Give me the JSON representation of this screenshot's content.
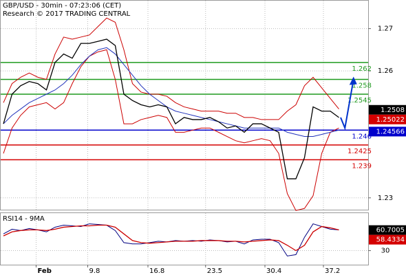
{
  "chart_data": [
    {
      "type": "line",
      "title": "GBP/USD - 30min - 07:23:06 (CET)",
      "subtitle": "Research © 2017 TRADING CENTRAL",
      "x": [
        0,
        1,
        2,
        3,
        4,
        5,
        6,
        7,
        8,
        9,
        10,
        11,
        12,
        13,
        14,
        15,
        16,
        17,
        18,
        19,
        20,
        21,
        22,
        23,
        24,
        25,
        26,
        27,
        28,
        29,
        30,
        31,
        32,
        33,
        34,
        35,
        36,
        37,
        38,
        39
      ],
      "xlim": [
        -0.4,
        42.4
      ],
      "xticks": [
        {
          "value": 3.8,
          "label": "Feb"
        },
        9.8,
        16.8,
        23.5,
        30.4,
        37.2
      ],
      "ylim": [
        1.2272,
        1.2766
      ],
      "yticks": [
        1.23,
        1.26,
        1.27
      ],
      "grid": true,
      "series": [
        {
          "color": "#cc0000",
          "values": [
            1.2525,
            1.257,
            1.2585,
            1.2595,
            1.2585,
            1.258,
            1.264,
            1.268,
            1.2675,
            1.268,
            1.2685,
            1.2705,
            1.2725,
            1.2715,
            1.265,
            1.257,
            1.255,
            1.2545,
            1.2545,
            1.254,
            1.2525,
            1.2515,
            1.251,
            1.2505,
            1.2505,
            1.2505,
            1.25,
            1.25,
            1.249,
            1.249,
            1.2485,
            1.2485,
            1.2485,
            1.2505,
            1.252,
            1.2565,
            1.2585,
            1.256,
            1.2535,
            1.251
          ]
        },
        {
          "color": "#cc0000",
          "values": [
            1.2405,
            1.2465,
            1.2495,
            1.2515,
            1.252,
            1.2525,
            1.251,
            1.2525,
            1.257,
            1.261,
            1.2635,
            1.2645,
            1.265,
            1.258,
            1.2475,
            1.2475,
            1.2485,
            1.249,
            1.2495,
            1.249,
            1.2455,
            1.2455,
            1.246,
            1.2465,
            1.2465,
            1.2455,
            1.2445,
            1.2435,
            1.243,
            1.2435,
            1.244,
            1.2435,
            1.2405,
            1.231,
            1.227,
            1.2275,
            1.2305,
            1.2405,
            1.2455,
            1.2465
          ]
        },
        {
          "color": "#2233bb",
          "values": [
            1.2475,
            1.2495,
            1.251,
            1.2525,
            1.2535,
            1.2545,
            1.2555,
            1.257,
            1.259,
            1.2615,
            1.2635,
            1.265,
            1.2655,
            1.264,
            1.2615,
            1.259,
            1.2565,
            1.2545,
            1.253,
            1.2515,
            1.2505,
            1.25,
            1.2495,
            1.249,
            1.2485,
            1.248,
            1.2475,
            1.247,
            1.2465,
            1.2465,
            1.2465,
            1.2465,
            1.2465,
            1.2455,
            1.245,
            1.2445,
            1.2445,
            1.245,
            1.2455,
            1.246
          ]
        },
        {
          "color": "#000000",
          "values": [
            1.2475,
            1.2545,
            1.2565,
            1.2575,
            1.257,
            1.2555,
            1.262,
            1.264,
            1.263,
            1.2665,
            1.2665,
            1.267,
            1.2675,
            1.266,
            1.2545,
            1.253,
            1.252,
            1.2515,
            1.252,
            1.2515,
            1.2475,
            1.249,
            1.2485,
            1.2485,
            1.249,
            1.248,
            1.2465,
            1.247,
            1.2455,
            1.2475,
            1.2475,
            1.2465,
            1.2455,
            1.2345,
            1.2345,
            1.2395,
            1.2515,
            1.2505,
            1.2505,
            1.249
          ]
        }
      ],
      "forecast": {
        "color": "#0033cc",
        "x": [
          39.2,
          39.7,
          40.7
        ],
        "values": [
          1.249,
          1.2465,
          1.258
        ]
      },
      "levels": [
        {
          "value": 1.262,
          "color": "#1e9a1e"
        },
        {
          "value": 1.258,
          "color": "#1e9a1e"
        },
        {
          "value": 1.2545,
          "color": "#1e9a1e"
        },
        {
          "value": 1.246,
          "color": "#0000cc"
        },
        {
          "value": 1.2425,
          "color": "#d40000"
        },
        {
          "value": 1.239,
          "color": "#d40000"
        }
      ],
      "price_tags": [
        {
          "value": 1.2508,
          "color": "#000000"
        },
        {
          "value": 1.25022,
          "color": "#d40000"
        },
        {
          "value": 1.24566,
          "color": "#0000cc"
        }
      ]
    },
    {
      "type": "line",
      "title": "RSI14 - 9MA",
      "ylim": [
        9,
        86
      ],
      "yticks": [
        30
      ],
      "series": [
        {
          "color": "#000080",
          "values": [
            55,
            62,
            60,
            63,
            61,
            58,
            65,
            68,
            67,
            66,
            70,
            69,
            68,
            60,
            42,
            40,
            40,
            42,
            44,
            43,
            45,
            44,
            45,
            44,
            46,
            45,
            43,
            44,
            40,
            46,
            47,
            47,
            42,
            22,
            24,
            50,
            70,
            66,
            62,
            61
          ]
        },
        {
          "color": "#cc0000",
          "values": [
            52,
            58,
            60,
            61,
            61,
            60,
            62,
            65,
            66,
            67,
            67,
            68,
            68,
            65,
            55,
            45,
            42,
            41,
            42,
            43,
            44,
            44,
            44,
            45,
            45,
            45,
            44,
            44,
            43,
            44,
            45,
            46,
            45,
            38,
            30,
            38,
            58,
            66,
            64,
            61
          ]
        }
      ],
      "price_tags": [
        {
          "value": 60.7005,
          "color": "#000000"
        },
        {
          "value": 58.4334,
          "color": "#d40000"
        }
      ]
    }
  ]
}
